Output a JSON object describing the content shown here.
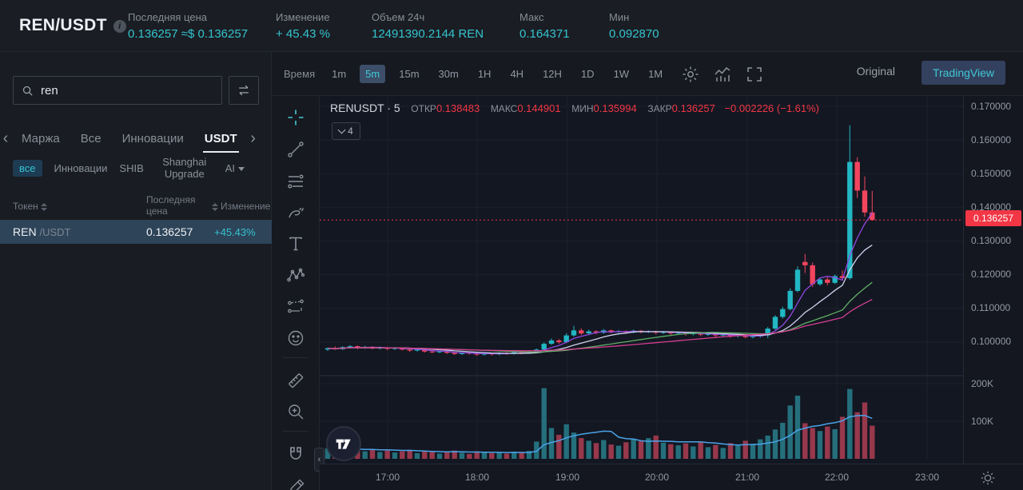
{
  "header": {
    "pair": "REN/USDT",
    "info_icon": "i",
    "stats": [
      {
        "label": "Последняя цена",
        "value": "0.136257 ≈$ 0.136257"
      },
      {
        "label": "Изменение",
        "value": "+ 45.43 %"
      },
      {
        "label": "Объем 24ч",
        "value": "12491390.2144 REN"
      },
      {
        "label": "Макс",
        "value": "0.164371"
      },
      {
        "label": "Мин",
        "value": "0.092870"
      }
    ]
  },
  "sidebar": {
    "search": {
      "value": "ren"
    },
    "tabs": {
      "t0": "Маржа",
      "t1": "Все",
      "t2": "Инновации",
      "t3": "USDT"
    },
    "chips": {
      "c0": "все",
      "c1": "Инновации",
      "c2": "SHIB",
      "c3": "Shanghai Upgrade",
      "c4": "AI"
    },
    "table": {
      "col_token": "Токен",
      "col_price": "Последняя цена",
      "col_change": "Изменение",
      "row": {
        "base": "REN",
        "quote": "/USDT",
        "price": "0.136257",
        "change": "+45.43%"
      }
    }
  },
  "toolbar": {
    "time_label": "Время",
    "timeframes": [
      "1m",
      "5m",
      "15m",
      "30m",
      "1H",
      "4H",
      "12H",
      "1D",
      "1W",
      "1M"
    ],
    "active_timeframe": "5m",
    "view_original": "Original",
    "view_tradingview": "TradingView"
  },
  "legend": {
    "title": "RENUSDT · 5",
    "open_label": "ОТКР",
    "open": "0.138483",
    "high_label": "МАКС",
    "high": "0.144901",
    "low_label": "МИН",
    "low": "0.135994",
    "close_label": "ЗАКР",
    "close": "0.136257",
    "change": "−0.002226 (−1.61%)",
    "indicators_collapsed": "4"
  },
  "axes": {
    "price_ticks": [
      "0.170000",
      "0.160000",
      "0.150000",
      "0.140000",
      "0.130000",
      "0.120000",
      "0.110000",
      "0.100000"
    ],
    "last_price": "0.136257",
    "volume_ticks": [
      "200K",
      "100K"
    ],
    "time_ticks": [
      "17:00",
      "18:00",
      "19:00",
      "20:00",
      "21:00",
      "22:00",
      "23:00"
    ]
  },
  "chart_data": {
    "type": "candlestick_with_volume",
    "symbol": "RENUSDT",
    "interval_minutes": 5,
    "start_time": "16:20",
    "price_range_visible": [
      0.095,
      0.171
    ],
    "volume_range_visible_K": [
      0,
      230
    ],
    "colors": {
      "up": "#21b7c3",
      "down": "#f3455e",
      "vol_up": "#256f7c",
      "vol_down": "#97384c",
      "vol_ma": "#4aa3e8",
      "last_price_line": "#f23645",
      "grid": "#1c212c",
      "separator": "#2a303c"
    },
    "ma_overlays": [
      {
        "period": 5,
        "color": "#9048e0"
      },
      {
        "period": 10,
        "color": "#cfd3ec"
      },
      {
        "period": 20,
        "color": "#5fae64"
      },
      {
        "period": 30,
        "color": "#d63f92"
      }
    ],
    "candles_ohlcv": [
      [
        0.0978,
        0.0984,
        0.0974,
        0.0982,
        28
      ],
      [
        0.0982,
        0.0987,
        0.0977,
        0.0979,
        22
      ],
      [
        0.0979,
        0.0988,
        0.0977,
        0.0985,
        25
      ],
      [
        0.0985,
        0.0991,
        0.0982,
        0.0988,
        30
      ],
      [
        0.0988,
        0.099,
        0.0979,
        0.0983,
        26
      ],
      [
        0.0983,
        0.0989,
        0.098,
        0.0986,
        20
      ],
      [
        0.0986,
        0.0988,
        0.0978,
        0.0981,
        24
      ],
      [
        0.0981,
        0.0987,
        0.0978,
        0.0984,
        18
      ],
      [
        0.0984,
        0.0986,
        0.0976,
        0.098,
        22
      ],
      [
        0.098,
        0.0985,
        0.0977,
        0.0983,
        17
      ],
      [
        0.0983,
        0.0984,
        0.0975,
        0.0978,
        20
      ],
      [
        0.0978,
        0.0981,
        0.0971,
        0.0975,
        23
      ],
      [
        0.0975,
        0.098,
        0.0972,
        0.0978,
        15
      ],
      [
        0.0978,
        0.0979,
        0.0969,
        0.0972,
        21
      ],
      [
        0.0972,
        0.0976,
        0.0967,
        0.097,
        18
      ],
      [
        0.097,
        0.0975,
        0.0967,
        0.0973,
        14
      ],
      [
        0.0973,
        0.0974,
        0.0965,
        0.0968,
        19
      ],
      [
        0.0968,
        0.0971,
        0.0962,
        0.0965,
        22
      ],
      [
        0.0965,
        0.097,
        0.0962,
        0.0968,
        16
      ],
      [
        0.0968,
        0.0971,
        0.0963,
        0.0966,
        13
      ],
      [
        0.0966,
        0.0969,
        0.0959,
        0.0963,
        20
      ],
      [
        0.0963,
        0.0969,
        0.096,
        0.0967,
        17
      ],
      [
        0.0967,
        0.0968,
        0.096,
        0.0964,
        15
      ],
      [
        0.0964,
        0.097,
        0.0961,
        0.0968,
        18
      ],
      [
        0.0968,
        0.097,
        0.0962,
        0.0966,
        14
      ],
      [
        0.0966,
        0.0973,
        0.0963,
        0.097,
        19
      ],
      [
        0.097,
        0.0972,
        0.0964,
        0.0968,
        16
      ],
      [
        0.0968,
        0.0975,
        0.0965,
        0.0972,
        21
      ],
      [
        0.0972,
        0.0981,
        0.0969,
        0.0978,
        46
      ],
      [
        0.0978,
        0.0999,
        0.0976,
        0.0995,
        188
      ],
      [
        0.0995,
        0.1011,
        0.0992,
        0.1005,
        82
      ],
      [
        0.1005,
        0.1009,
        0.0995,
        0.1,
        64
      ],
      [
        0.1,
        0.1026,
        0.0997,
        0.102,
        92
      ],
      [
        0.102,
        0.1048,
        0.1016,
        0.1035,
        70
      ],
      [
        0.1035,
        0.1041,
        0.1021,
        0.1026,
        55
      ],
      [
        0.1026,
        0.1037,
        0.1022,
        0.1032,
        48
      ],
      [
        0.1032,
        0.1035,
        0.1023,
        0.1028,
        42
      ],
      [
        0.1028,
        0.1039,
        0.1025,
        0.1035,
        50
      ],
      [
        0.1035,
        0.1037,
        0.1026,
        0.103,
        38
      ],
      [
        0.103,
        0.1036,
        0.1027,
        0.1033,
        35
      ],
      [
        0.1033,
        0.1035,
        0.1025,
        0.1029,
        44
      ],
      [
        0.1029,
        0.1037,
        0.1026,
        0.1034,
        52
      ],
      [
        0.1034,
        0.1036,
        0.1026,
        0.103,
        47
      ],
      [
        0.103,
        0.1035,
        0.1027,
        0.1032,
        55
      ],
      [
        0.1032,
        0.1034,
        0.1023,
        0.1028,
        62
      ],
      [
        0.1028,
        0.1033,
        0.1024,
        0.103,
        43
      ],
      [
        0.103,
        0.1031,
        0.1021,
        0.1026,
        39
      ],
      [
        0.1026,
        0.103,
        0.1022,
        0.1028,
        36
      ],
      [
        0.1028,
        0.1029,
        0.1019,
        0.1024,
        41
      ],
      [
        0.1024,
        0.1028,
        0.102,
        0.1026,
        33
      ],
      [
        0.1026,
        0.1027,
        0.1017,
        0.1022,
        45
      ],
      [
        0.1022,
        0.1026,
        0.1018,
        0.1024,
        31
      ],
      [
        0.1024,
        0.1025,
        0.1015,
        0.102,
        37
      ],
      [
        0.102,
        0.1024,
        0.1016,
        0.1022,
        29
      ],
      [
        0.1022,
        0.1023,
        0.1013,
        0.1018,
        42
      ],
      [
        0.1018,
        0.1022,
        0.1014,
        0.102,
        35
      ],
      [
        0.102,
        0.1021,
        0.1011,
        0.1015,
        48
      ],
      [
        0.1015,
        0.1019,
        0.1011,
        0.1017,
        40
      ],
      [
        0.1017,
        0.1022,
        0.1013,
        0.102,
        52
      ],
      [
        0.102,
        0.1045,
        0.1012,
        0.104,
        62
      ],
      [
        0.104,
        0.108,
        0.1036,
        0.1075,
        78
      ],
      [
        0.1075,
        0.1105,
        0.107,
        0.1098,
        96
      ],
      [
        0.1098,
        0.116,
        0.1094,
        0.1152,
        142
      ],
      [
        0.1152,
        0.1225,
        0.1148,
        0.1215,
        168
      ],
      [
        0.1238,
        0.1262,
        0.1205,
        0.1228,
        95
      ],
      [
        0.1228,
        0.1236,
        0.1164,
        0.1172,
        82
      ],
      [
        0.1172,
        0.1191,
        0.1167,
        0.1186,
        74
      ],
      [
        0.1186,
        0.1193,
        0.1169,
        0.1176,
        86
      ],
      [
        0.1176,
        0.1201,
        0.1172,
        0.1196,
        79
      ],
      [
        0.1196,
        0.1213,
        0.1184,
        0.119,
        112
      ],
      [
        0.119,
        0.1644,
        0.1185,
        0.1535,
        186
      ],
      [
        0.1535,
        0.1549,
        0.1428,
        0.145,
        124
      ],
      [
        0.145,
        0.1492,
        0.1372,
        0.1385,
        150
      ],
      [
        0.138483,
        0.144901,
        0.135994,
        0.136257,
        88
      ]
    ]
  }
}
